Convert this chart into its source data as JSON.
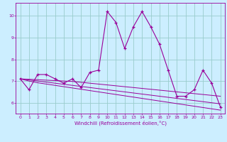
{
  "x": [
    0,
    1,
    2,
    3,
    4,
    5,
    6,
    7,
    8,
    9,
    10,
    11,
    12,
    13,
    14,
    15,
    16,
    17,
    18,
    19,
    20,
    21,
    22,
    23
  ],
  "y_main": [
    7.1,
    6.6,
    7.3,
    7.3,
    7.1,
    6.9,
    7.1,
    6.7,
    7.4,
    7.5,
    10.2,
    9.7,
    8.5,
    9.5,
    10.2,
    9.5,
    8.7,
    7.5,
    6.3,
    6.3,
    6.6,
    7.5,
    6.9,
    5.8
  ],
  "y_trend1": [
    7.1,
    7.08,
    7.06,
    7.04,
    7.02,
    7.0,
    6.98,
    6.94,
    6.9,
    6.86,
    6.82,
    6.78,
    6.74,
    6.7,
    6.66,
    6.62,
    6.58,
    6.54,
    6.5,
    6.46,
    6.42,
    6.38,
    6.34,
    6.3
  ],
  "y_trend2": [
    7.1,
    7.05,
    7.0,
    6.95,
    6.9,
    6.85,
    6.8,
    6.75,
    6.7,
    6.65,
    6.6,
    6.55,
    6.5,
    6.45,
    6.4,
    6.35,
    6.3,
    6.25,
    6.2,
    6.15,
    6.1,
    6.05,
    6.0,
    5.95
  ],
  "y_trend3": [
    7.1,
    7.0,
    6.92,
    6.86,
    6.8,
    6.74,
    6.68,
    6.62,
    6.56,
    6.5,
    6.44,
    6.38,
    6.32,
    6.26,
    6.2,
    6.14,
    6.08,
    6.02,
    5.96,
    5.9,
    5.84,
    5.78,
    5.72,
    5.66
  ],
  "line_color": "#990099",
  "bg_color": "#cceeff",
  "grid_color": "#99cccc",
  "xlabel": "Windchill (Refroidissement éolien,°C)",
  "ylim": [
    5.5,
    10.6
  ],
  "xlim": [
    -0.5,
    23.5
  ],
  "yticks": [
    6,
    7,
    8,
    9,
    10
  ],
  "xticks": [
    0,
    1,
    2,
    3,
    4,
    5,
    6,
    7,
    8,
    9,
    10,
    11,
    12,
    13,
    14,
    15,
    16,
    17,
    18,
    19,
    20,
    21,
    22,
    23
  ]
}
